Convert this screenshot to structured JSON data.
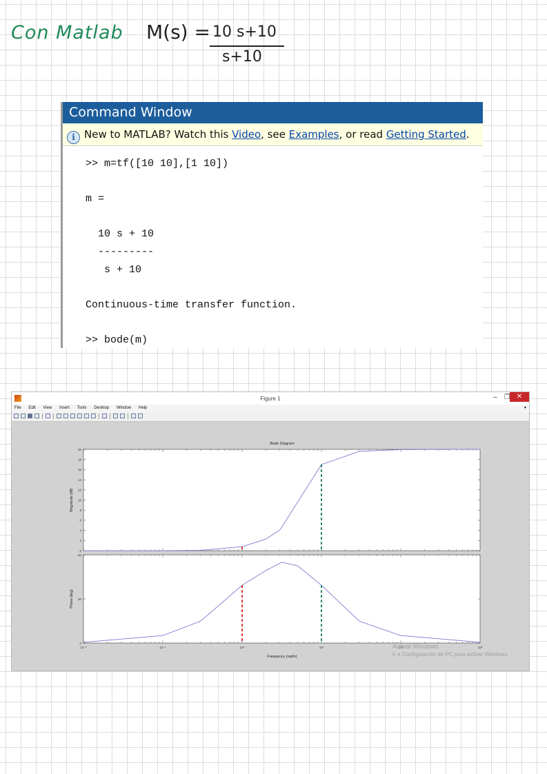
{
  "notes": {
    "title": "Con Matlab",
    "lhs": "M(s) =",
    "numerator": "10 s+10",
    "denominator": "s+10",
    "annotation": "10"
  },
  "command_window": {
    "title": "Command Window",
    "banner": {
      "text_prefix": "New to MATLAB? Watch this ",
      "link_video": "Video",
      "text_mid1": ", see ",
      "link_examples": "Examples",
      "text_mid2": ", or read ",
      "link_getting_started": "Getting Started",
      "text_suffix": "."
    },
    "lines": [
      ">> m=tf([10 10],[1 10])",
      "",
      "m =",
      "",
      "  10 s + 10",
      "  ---------",
      "   s + 10",
      "",
      "Continuous-time transfer function.",
      "",
      ">> bode(m)"
    ]
  },
  "figure": {
    "window_title": "Figure 1",
    "buttons": {
      "minimize": "–",
      "maximize": "❐",
      "close": "✕"
    },
    "menu": [
      "File",
      "Edit",
      "View",
      "Insert",
      "Tools",
      "Desktop",
      "Window",
      "Help"
    ],
    "menu_arrow": "▾",
    "watermark": {
      "line1": "Activar Windows",
      "line2": "Ir a Configuración de PC para activar Windows."
    }
  },
  "chart_data": {
    "type": "line",
    "title": "Bode Diagram",
    "xlabel": "Frequency (rad/s)",
    "x_scale": "log",
    "xlim": [
      0.01,
      1000
    ],
    "x_ticks": [
      0.01,
      0.1,
      1,
      10,
      100,
      1000
    ],
    "x_tick_labels": [
      "10⁻²",
      "10⁻¹",
      "10⁰",
      "10¹",
      "10²",
      "10³"
    ],
    "grid": false,
    "line_color": "#7b7bd0",
    "panels": [
      {
        "name": "magnitude",
        "ylabel": "Magnitude (dB)",
        "ylim": [
          0,
          20
        ],
        "y_ticks": [
          0,
          2,
          4,
          6,
          8,
          10,
          12,
          14,
          16,
          18,
          20
        ],
        "y_tick_labels": [
          "0",
          "2",
          "4",
          "6",
          "8",
          "10",
          "12",
          "14",
          "16",
          "18",
          "20"
        ],
        "series": [
          {
            "x": [
              0.01,
              0.1,
              0.3,
              1,
              2,
              3,
              10,
              30,
              100,
              1000
            ],
            "y": [
              0.0,
              0.01,
              0.07,
              0.8,
              2.3,
              4.1,
              17.0,
              19.6,
              19.96,
              20.0
            ]
          }
        ]
      },
      {
        "name": "phase",
        "ylabel": "Phase (deg)",
        "ylim": [
          0,
          60
        ],
        "y_ticks": [
          0,
          30,
          60
        ],
        "y_tick_labels": [
          "0",
          "30",
          "60"
        ],
        "series": [
          {
            "x": [
              0.01,
              0.1,
              0.3,
              1,
              2,
              3.16,
              5,
              10,
              30,
              100,
              1000
            ],
            "y": [
              0.5,
              5.1,
              14.9,
              39.3,
              49.4,
              54.9,
              52.6,
              39.3,
              14.9,
              5.1,
              0.5
            ]
          }
        ]
      }
    ],
    "annotation_lines": [
      {
        "x": 1,
        "color": "#d62020"
      },
      {
        "x": 10,
        "color": "#1a7a5a"
      }
    ]
  }
}
